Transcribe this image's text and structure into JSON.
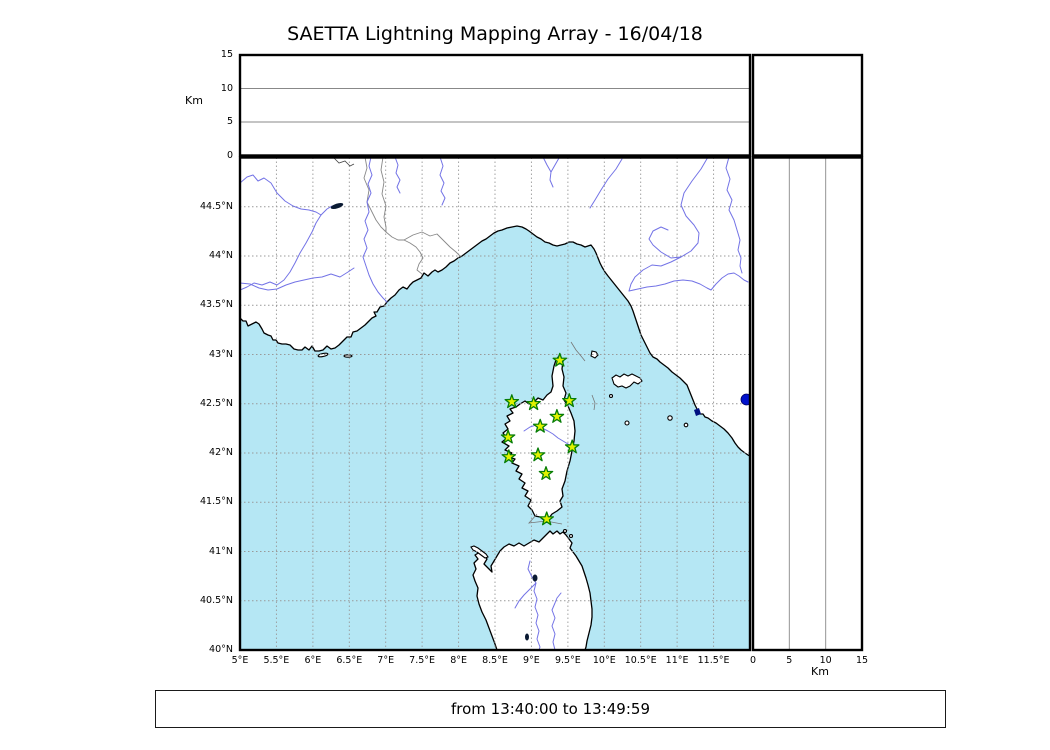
{
  "title": "SAETTA Lightning Mapping Array - 16/04/18",
  "footer": {
    "time_range": "from 13:40:00 to 13:49:59"
  },
  "altitude_axis": {
    "label": "Km",
    "ticks": [
      "15",
      "10",
      "5",
      "0"
    ]
  },
  "km_axis_bottom": {
    "label": "Km",
    "ticks": [
      "0",
      "5",
      "10",
      "15"
    ]
  },
  "map": {
    "lon_ticks": [
      "5°E",
      "5.5°E",
      "6°E",
      "6.5°E",
      "7°E",
      "7.5°E",
      "8°E",
      "8.5°E",
      "9°E",
      "9.5°E",
      "10°E",
      "10.5°E",
      "11°E",
      "11.5°E"
    ],
    "lat_ticks": [
      "44.5°N",
      "44°N",
      "43.5°N",
      "43°N",
      "42.5°N",
      "42°N",
      "41.5°N",
      "41°N",
      "40.5°N",
      "40°N"
    ]
  },
  "colors": {
    "sea": "#b5e7f4",
    "land": "#ffffff",
    "coastline": "#000000",
    "river": "#7373e6",
    "grid": "#999999",
    "panel_grid": "#888888",
    "station_fill": "#e1f200",
    "station_stroke": "#067d06",
    "lake_dot": "#0011cc",
    "dark_lake": "#0a1a33"
  },
  "chart_data": {
    "type": "scatter",
    "map_extent": {
      "lon": [
        5,
        12
      ],
      "lat": [
        40,
        45
      ]
    },
    "altitude_km_range": [
      0,
      15
    ],
    "stations": [
      {
        "lon": 9.39,
        "lat": 42.94
      },
      {
        "lon": 8.73,
        "lat": 42.52
      },
      {
        "lon": 9.03,
        "lat": 42.5
      },
      {
        "lon": 9.52,
        "lat": 42.53
      },
      {
        "lon": 9.35,
        "lat": 42.37
      },
      {
        "lon": 9.12,
        "lat": 42.27
      },
      {
        "lon": 8.68,
        "lat": 42.16
      },
      {
        "lon": 9.56,
        "lat": 42.06
      },
      {
        "lon": 9.09,
        "lat": 41.98
      },
      {
        "lon": 8.69,
        "lat": 41.96
      },
      {
        "lon": 9.2,
        "lat": 41.79
      },
      {
        "lon": 9.21,
        "lat": 41.33
      }
    ]
  }
}
